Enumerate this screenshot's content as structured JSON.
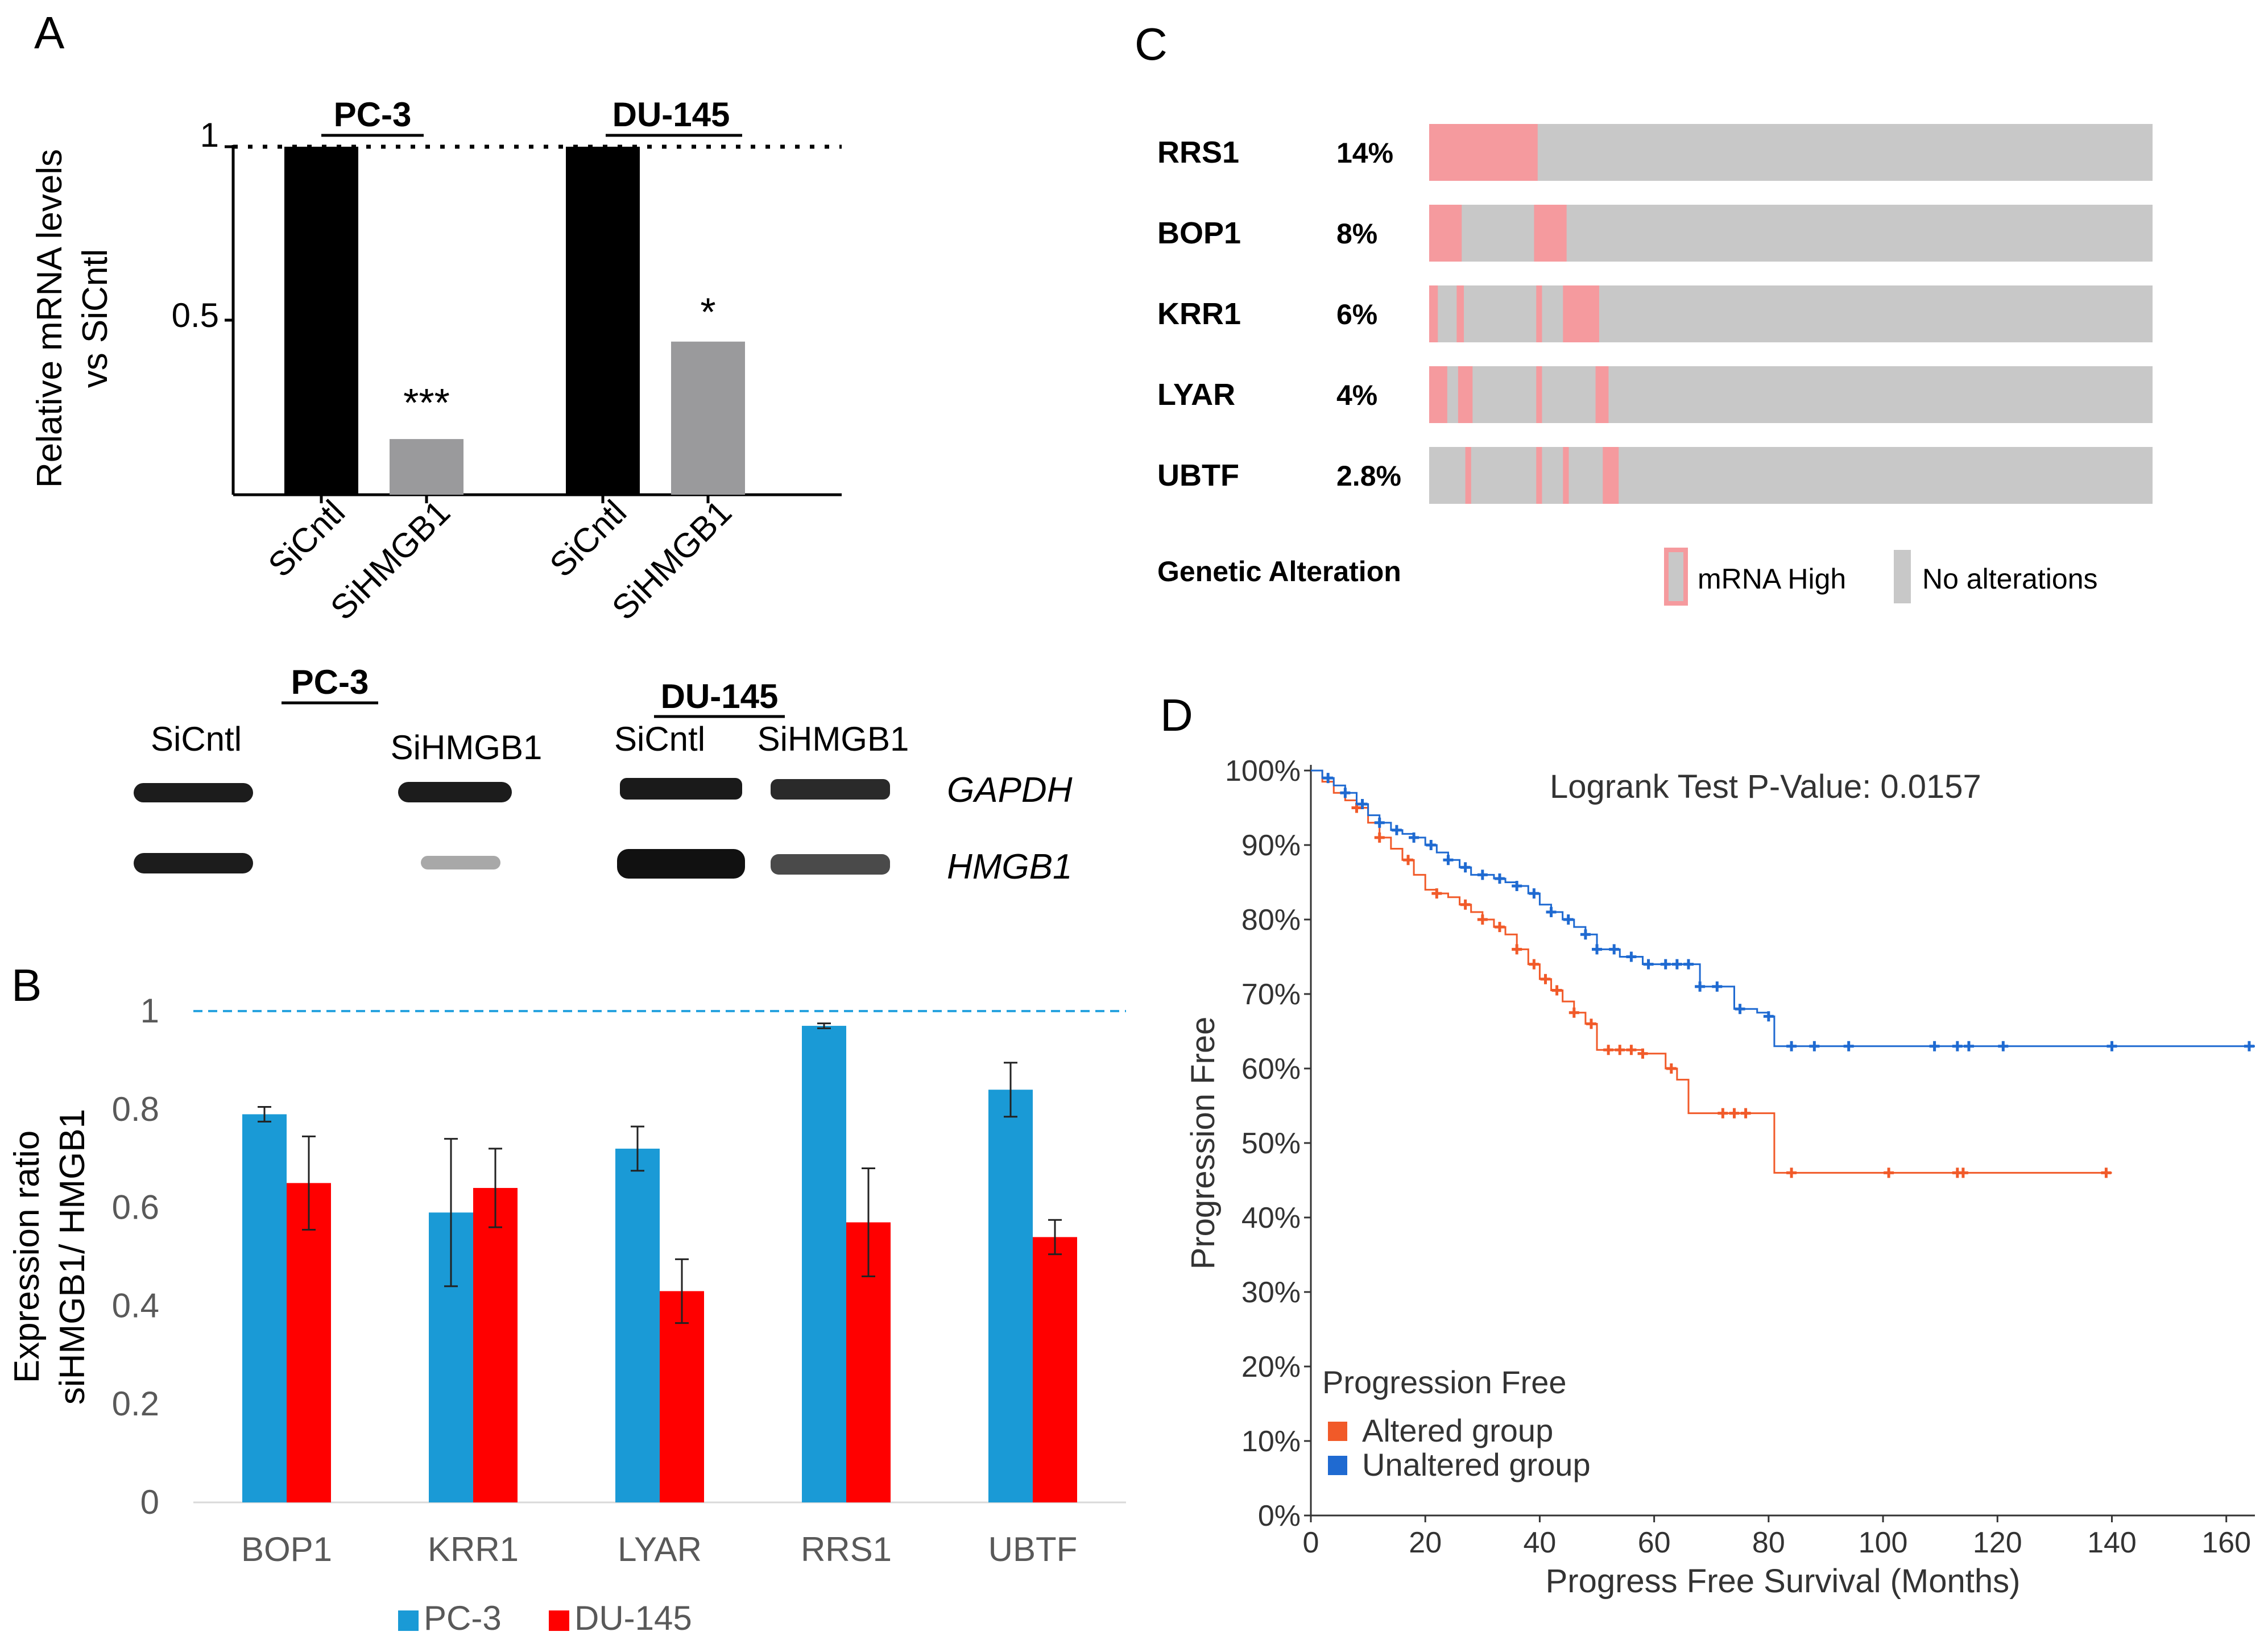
{
  "panel_labels": {
    "a": "A",
    "b": "B",
    "c": "C",
    "d": "D"
  },
  "colors": {
    "pc3": "#1a9ad6",
    "du145": "#ff0000",
    "black_bar": "#000000",
    "gray_bar": "#9a9a9c",
    "altered": "#f15a29",
    "unaltered": "#1f6ad1",
    "mrna_high": "#f59a9e",
    "no_alteration": "#c8c8c8",
    "dash_line": "#29a3df"
  },
  "chart_data": [
    {
      "id": "A",
      "type": "bar",
      "groups": [
        "PC-3",
        "DU-145"
      ],
      "categories": [
        "SiCntl",
        "SiHMGB1",
        "SiCntl",
        "SiHMGB1"
      ],
      "values": [
        1,
        0.16,
        1,
        0.44
      ],
      "significance": [
        "***",
        "*"
      ],
      "ylabel": [
        "Relative mRNA levels",
        "vs SiCntl"
      ],
      "yticks": [
        "1",
        "0.5"
      ],
      "ylim": [
        0,
        1
      ],
      "reference_line": 1
    },
    {
      "id": "B",
      "type": "bar",
      "categories": [
        "BOP1",
        "KRR1",
        "LYAR",
        "RRS1",
        "UBTF"
      ],
      "series": [
        {
          "name": "PC-3",
          "values": [
            0.79,
            0.59,
            0.72,
            0.97,
            0.84
          ],
          "errors": [
            0.015,
            0.15,
            0.045,
            0.005,
            0.055
          ]
        },
        {
          "name": "DU-145",
          "values": [
            0.65,
            0.64,
            0.43,
            0.57,
            0.54
          ],
          "errors": [
            0.095,
            0.08,
            0.065,
            0.11,
            0.035
          ]
        }
      ],
      "ylabel": [
        "Expression ratio",
        "siHMGB1/ HMGB1"
      ],
      "yticks": [
        "0",
        "0.2",
        "0.4",
        "0.6",
        "0.8",
        "1"
      ],
      "ylim": [
        0,
        1
      ],
      "reference_line": 1
    },
    {
      "id": "C",
      "type": "oncoprint",
      "genes": [
        {
          "name": "RRS1",
          "pct": "14%",
          "segments": [
            [
              0,
              0.15
            ]
          ]
        },
        {
          "name": "BOP1",
          "pct": "8%",
          "segments": [
            [
              0,
              0.045
            ],
            [
              0.145,
              0.19
            ]
          ]
        },
        {
          "name": "KRR1",
          "pct": "6%",
          "segments": [
            [
              0,
              0.012
            ],
            [
              0.038,
              0.048
            ],
            [
              0.148,
              0.156
            ],
            [
              0.185,
              0.235
            ]
          ]
        },
        {
          "name": "LYAR",
          "pct": "4%",
          "segments": [
            [
              0,
              0.025
            ],
            [
              0.04,
              0.06
            ],
            [
              0.148,
              0.156
            ],
            [
              0.23,
              0.248
            ]
          ]
        },
        {
          "name": "UBTF",
          "pct": "2.8%",
          "segments": [
            [
              0.05,
              0.058
            ],
            [
              0.148,
              0.156
            ],
            [
              0.185,
              0.193
            ],
            [
              0.24,
              0.262
            ]
          ]
        }
      ],
      "footer_label": "Genetic Alteration",
      "legend": [
        "mRNA High",
        "No alterations"
      ]
    },
    {
      "id": "D",
      "type": "line",
      "title": "Logrank Test P-Value: 0.0157",
      "xlabel": "Progress Free Survival (Months)",
      "ylabel": "Progression Free",
      "xticks": [
        "0",
        "20",
        "40",
        "60",
        "80",
        "100",
        "120",
        "140",
        "160"
      ],
      "yticks": [
        "0%",
        "10%",
        "20%",
        "30%",
        "40%",
        "50%",
        "60%",
        "70%",
        "80%",
        "90%",
        "100%"
      ],
      "xlim": [
        0,
        165
      ],
      "ylim": [
        0,
        100
      ],
      "legend_title": "Progression Free",
      "series": [
        {
          "name": "Altered group",
          "x": [
            0,
            2,
            4,
            6,
            8,
            10,
            12,
            14,
            16,
            18,
            20,
            22,
            24,
            26,
            28,
            30,
            32,
            34,
            36,
            38,
            40,
            42,
            44,
            46,
            48,
            50,
            54,
            58,
            62,
            64,
            66,
            70,
            74,
            78,
            80,
            81,
            82,
            84,
            100,
            110,
            114,
            140
          ],
          "y": [
            100,
            98.5,
            97,
            96,
            95,
            93,
            91,
            89.5,
            88,
            86,
            84,
            83.5,
            83,
            82,
            81,
            80,
            79,
            78,
            76,
            74,
            72,
            70.5,
            69,
            67.5,
            66,
            62.5,
            62.5,
            62,
            60,
            58.5,
            54,
            54,
            54,
            54,
            54,
            46,
            46,
            46,
            46,
            46,
            46,
            46
          ],
          "censor_x": [
            8,
            12,
            17,
            22,
            27,
            30,
            33,
            36,
            39,
            41,
            43,
            46,
            49,
            52,
            54,
            56,
            58,
            63,
            72,
            74,
            76,
            84,
            101,
            113,
            114,
            139
          ]
        },
        {
          "name": "Unaltered group",
          "x": [
            0,
            2,
            4,
            6,
            8,
            10,
            12,
            14,
            16,
            18,
            20,
            22,
            24,
            26,
            28,
            30,
            32,
            34,
            36,
            38,
            40,
            42,
            44,
            46,
            48,
            50,
            54,
            58,
            62,
            64,
            66,
            68,
            72,
            74,
            78,
            80,
            81,
            82,
            84,
            95,
            110,
            114,
            120,
            140,
            165
          ],
          "y": [
            100,
            99,
            98,
            97,
            95.5,
            94,
            93,
            92,
            91.5,
            91,
            90,
            89,
            88,
            87,
            86,
            86,
            85.5,
            85,
            84.5,
            83.5,
            82,
            81,
            80,
            79,
            78,
            76,
            75,
            74,
            74,
            74,
            74,
            71,
            71,
            68,
            67.5,
            67,
            63,
            63,
            63,
            63,
            63,
            63,
            63,
            63,
            63
          ],
          "censor_x": [
            3,
            6,
            9,
            12,
            15,
            18,
            21,
            24,
            27,
            30,
            33,
            36,
            39,
            42,
            45,
            48,
            50,
            53,
            56,
            59,
            62,
            64,
            66,
            68,
            71,
            75,
            80,
            84,
            88,
            94,
            109,
            113,
            115,
            121,
            140,
            164
          ]
        }
      ]
    }
  ],
  "western_blot": {
    "cell_lines": [
      "PC-3",
      "DU-145"
    ],
    "lane_labels": [
      "SiCntl",
      "SiHMGB1",
      "SiCntl",
      "SiHMGB1"
    ],
    "proteins": [
      "GAPDH",
      "HMGB1"
    ]
  }
}
